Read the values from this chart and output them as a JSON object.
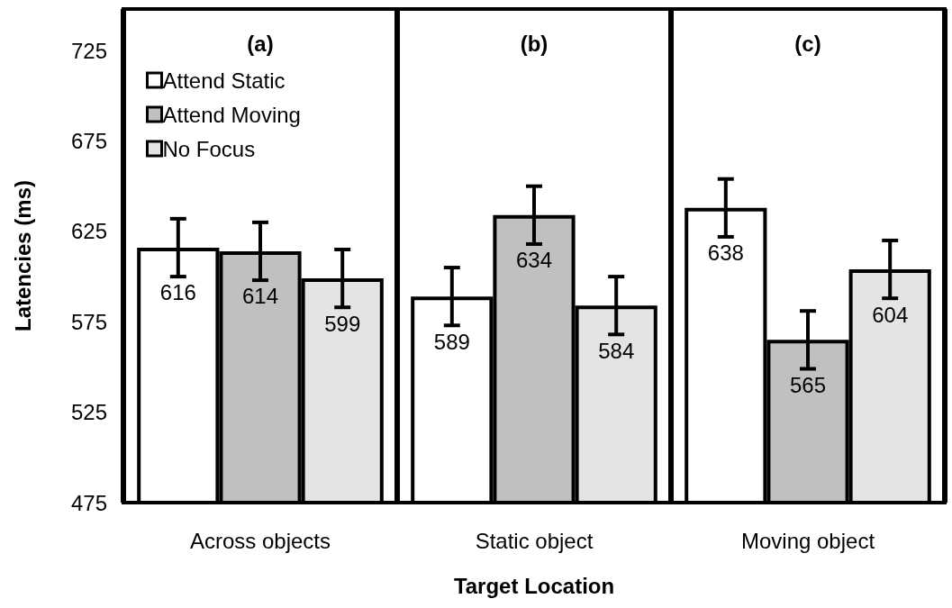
{
  "chart_data": {
    "type": "bar",
    "xlabel": "Target Location",
    "ylabel": "Latencies (ms)",
    "categories": [
      "Across objects",
      "Static object",
      "Moving object"
    ],
    "series": [
      {
        "name": "Attend Static",
        "color": "#ffffff",
        "values": [
          616,
          589,
          638
        ],
        "errors": [
          16,
          16,
          16
        ]
      },
      {
        "name": "Attend Moving",
        "color": "#c0c0c0",
        "values": [
          614,
          634,
          565
        ],
        "errors": [
          16,
          16,
          16
        ]
      },
      {
        "name": "No Focus",
        "color": "#e4e4e4",
        "values": [
          599,
          584,
          604
        ],
        "errors": [
          16,
          16,
          16
        ]
      }
    ],
    "ylim": [
      475,
      748
    ],
    "yticks": [
      475,
      525,
      575,
      625,
      675,
      725
    ],
    "annotations": [
      "(a)",
      "(b)",
      "(c)"
    ],
    "data_labels": true,
    "grid": "x",
    "legend": "top left"
  }
}
